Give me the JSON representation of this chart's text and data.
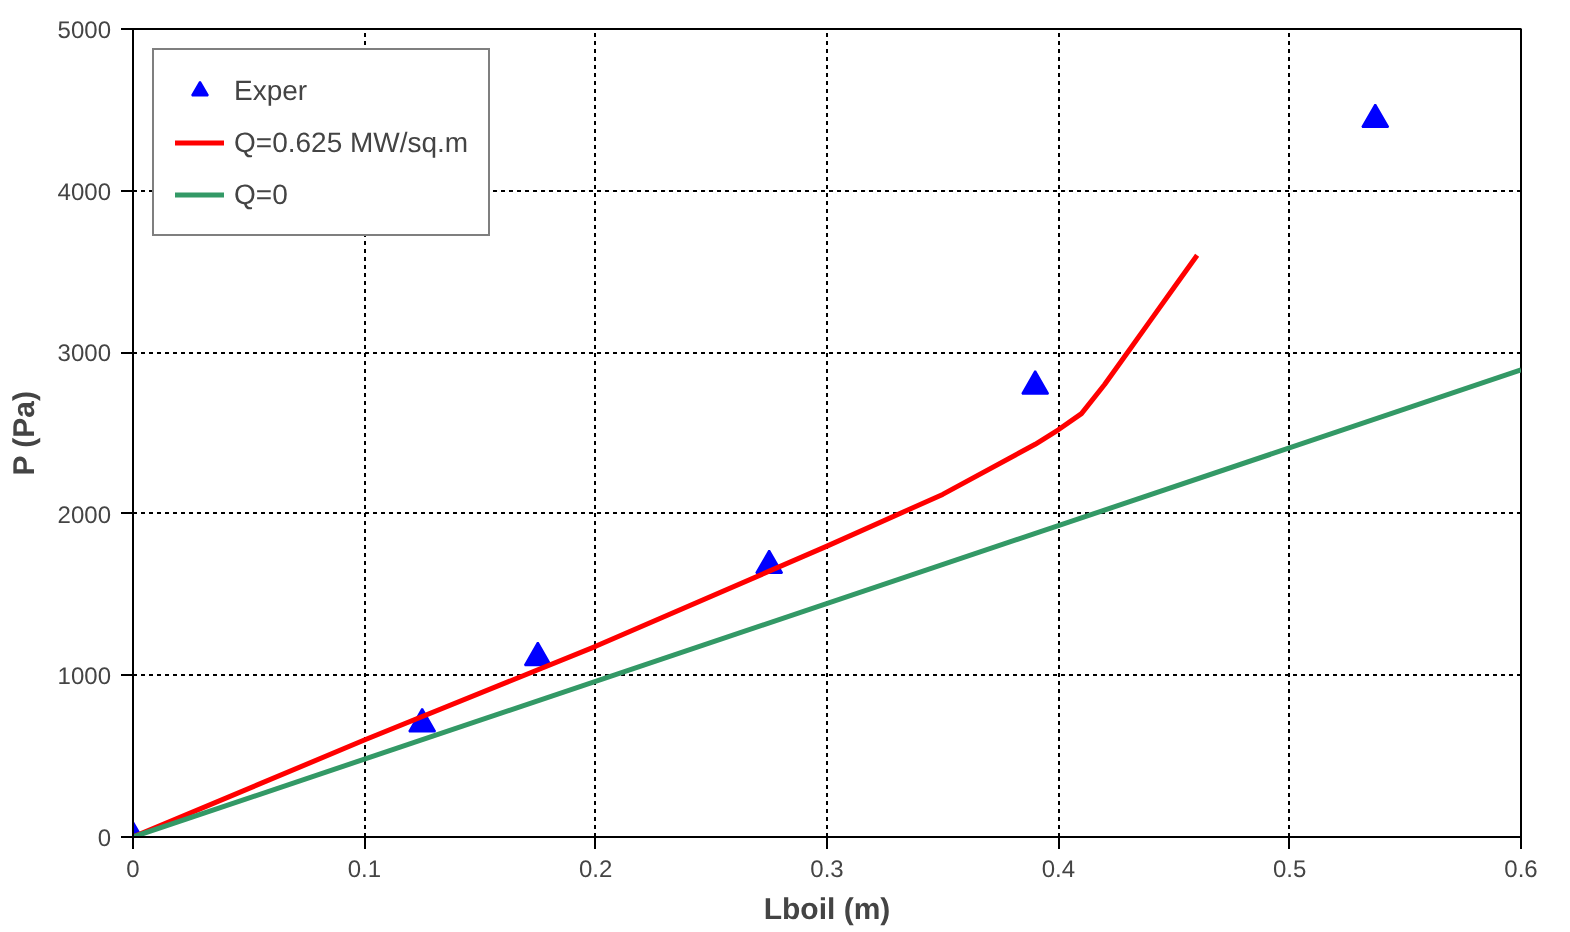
{
  "chart_data": {
    "type": "line",
    "xlabel": "Lboil (m)",
    "ylabel": "P (Pa)",
    "xlim": [
      0,
      0.6
    ],
    "xticks": [
      0,
      0.1,
      0.2,
      0.3,
      0.4,
      0.5,
      0.6
    ],
    "ylim": [
      0,
      5000
    ],
    "yticks": [
      0,
      1000,
      2000,
      3000,
      4000,
      5000
    ],
    "grid": true,
    "legend": "top left",
    "line_style": "solid",
    "series": [
      {
        "name": "Exper",
        "type": "scatter",
        "marker": "triangle",
        "color": "#0000ff",
        "x": [
          0,
          0.125,
          0.175,
          0.275,
          0.39,
          0.537
        ],
        "values": [
          0,
          700,
          1110,
          1680,
          2790,
          4440
        ]
      },
      {
        "name": "Q=0.625 MW/sq.m",
        "type": "line",
        "color": "#ff0000",
        "x": [
          0,
          0.1,
          0.2,
          0.3,
          0.35,
          0.39,
          0.4,
          0.41,
          0.42,
          0.43,
          0.44,
          0.45,
          0.46
        ],
        "values": [
          0,
          600,
          1180,
          1800,
          2120,
          2430,
          2520,
          2620,
          2800,
          3000,
          3200,
          3400,
          3600
        ]
      },
      {
        "name": "Q=0",
        "type": "line",
        "color": "#339966",
        "x": [
          0,
          0.6
        ],
        "values": [
          0,
          2890
        ]
      }
    ]
  }
}
